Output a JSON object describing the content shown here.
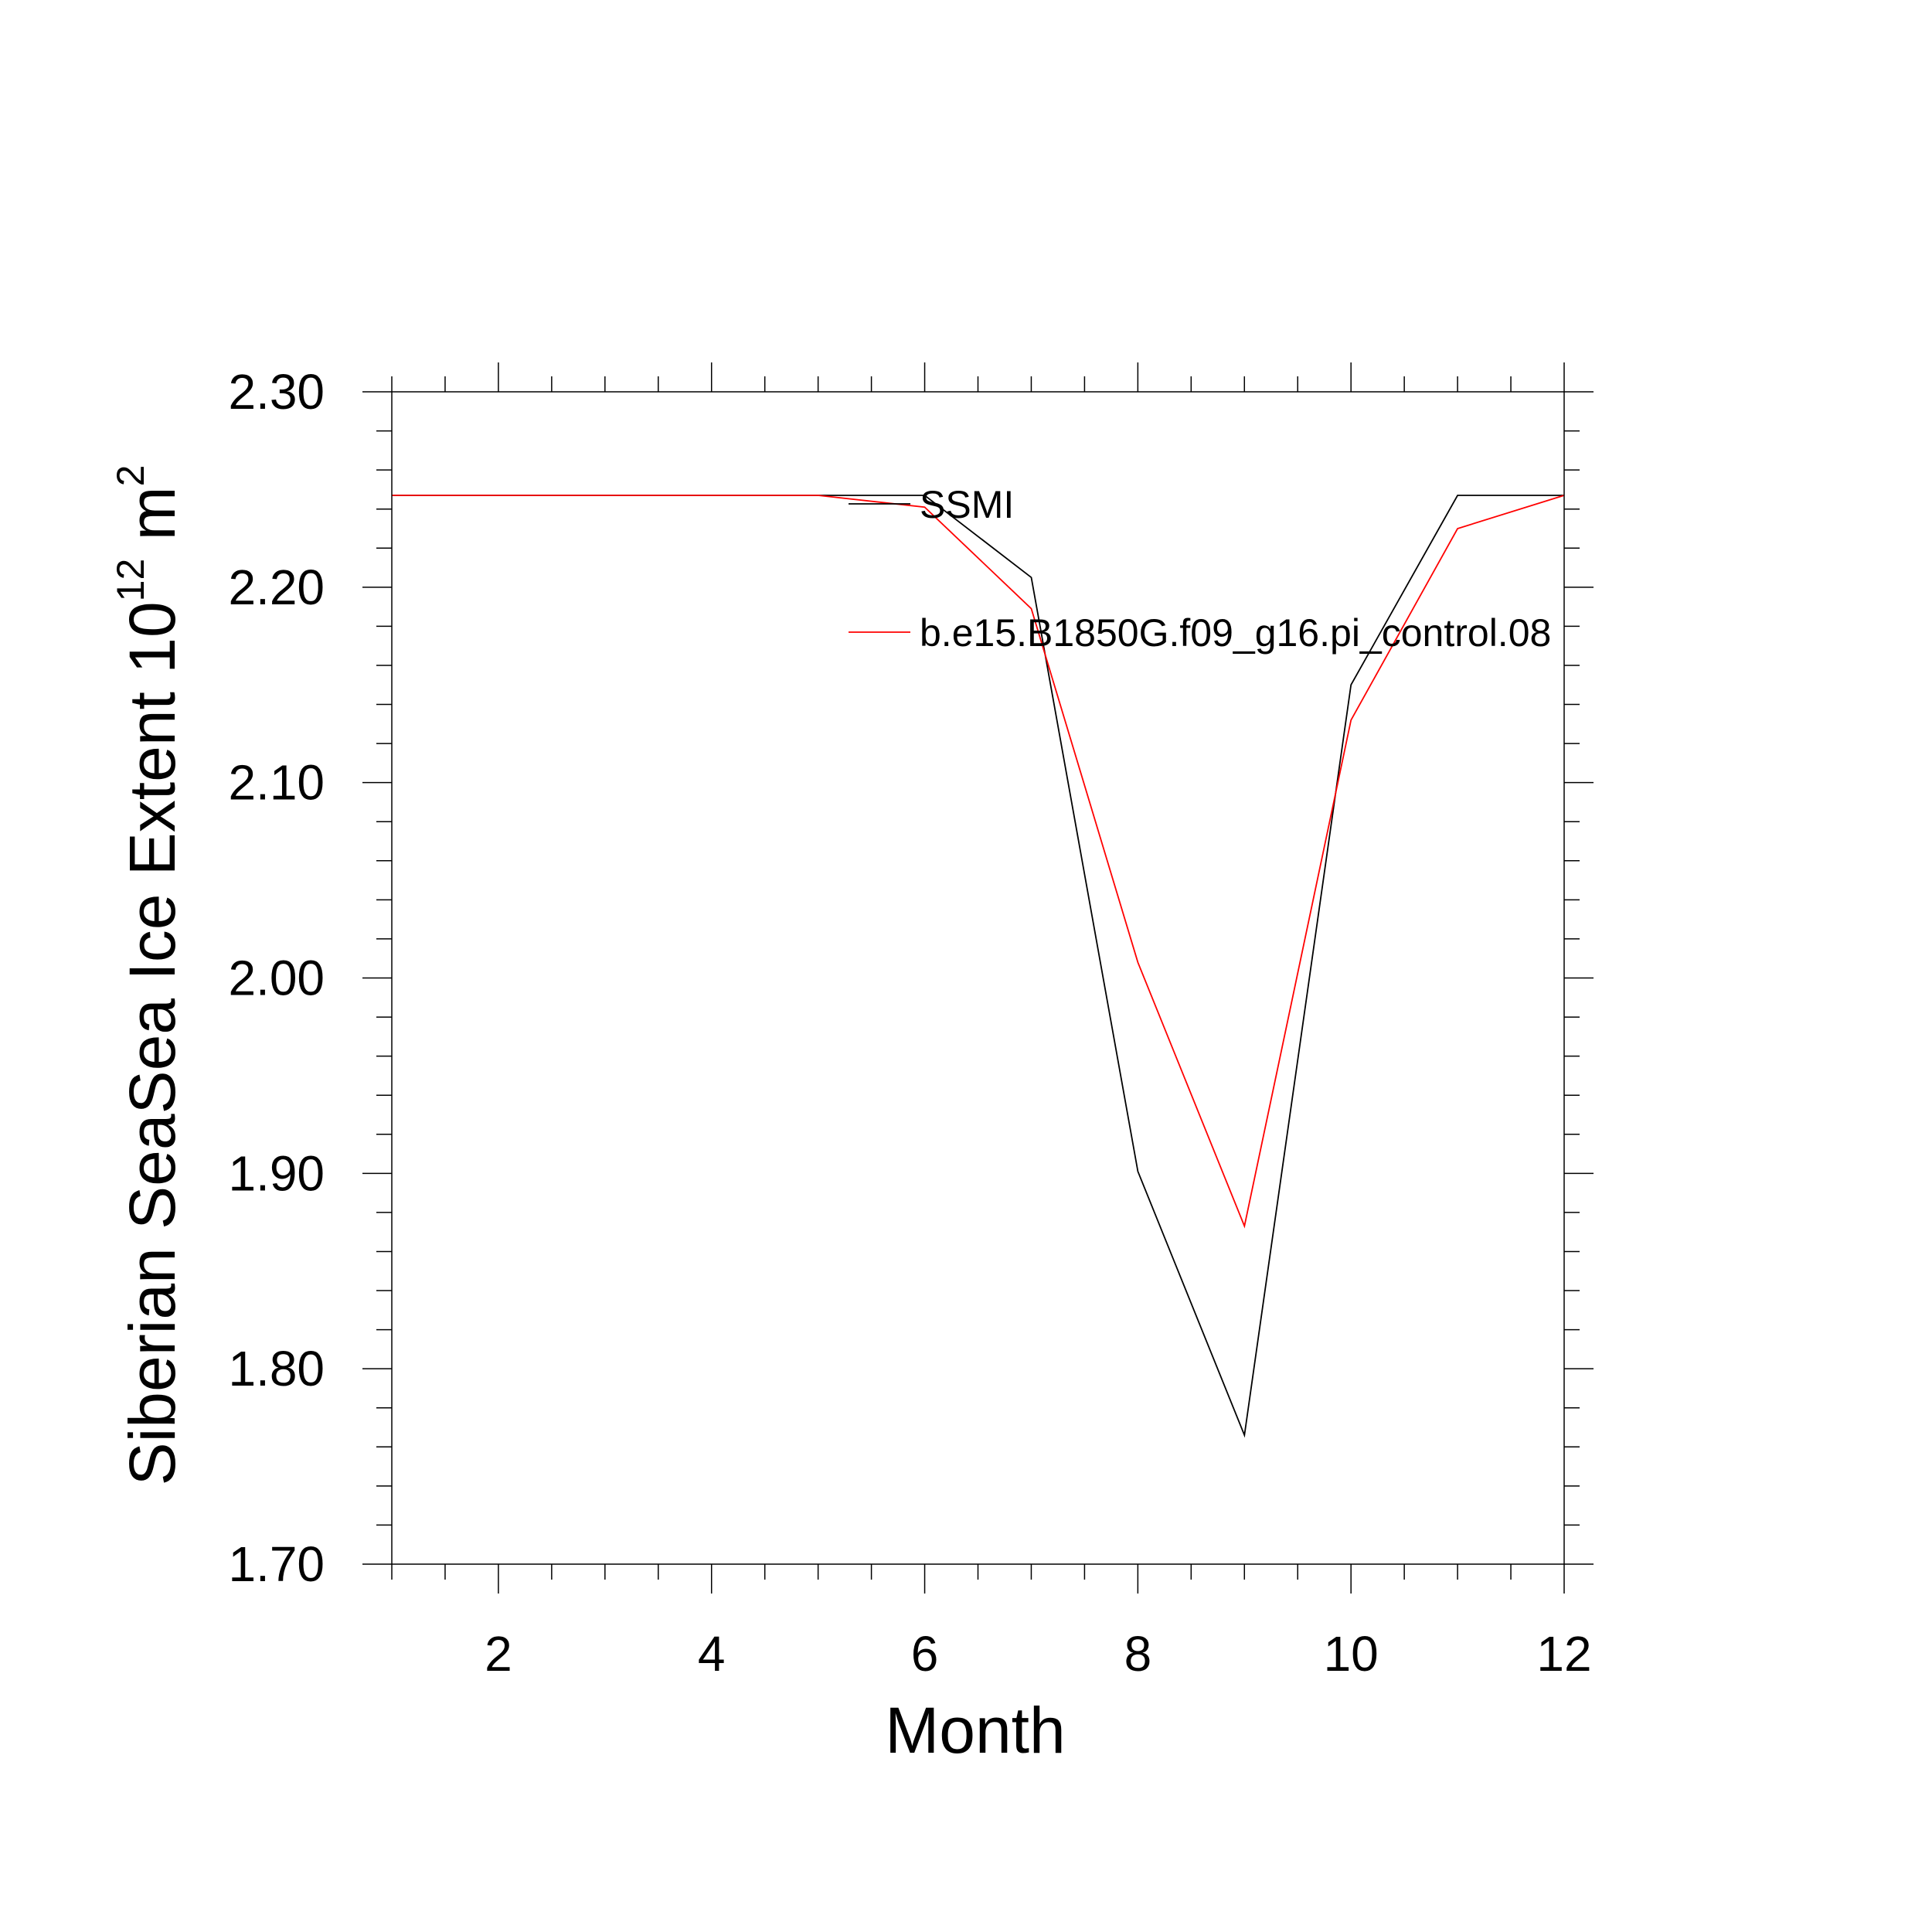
{
  "chart_data": {
    "type": "line",
    "xlabel": "Month",
    "ylabel": {
      "main": "Siberian SeaSea Ice Extent 10",
      "exp1": "12",
      "mid": " m",
      "exp2": "2"
    },
    "xlim": [
      1,
      12
    ],
    "ylim": [
      1.7,
      2.3
    ],
    "x_ticks": [
      2,
      4,
      6,
      8,
      10,
      12
    ],
    "x_tick_labels": [
      "2",
      "4",
      "6",
      "8",
      "10",
      "12"
    ],
    "y_ticks": [
      1.7,
      1.8,
      1.9,
      2.0,
      2.1,
      2.2,
      2.3
    ],
    "y_tick_labels": [
      "1.70",
      "1.80",
      "1.90",
      "2.00",
      "2.10",
      "2.20",
      "2.30"
    ],
    "x_minor_step": 0.5,
    "y_minor_step": 0.02,
    "grid": false,
    "legend_placement": "top-right (inside plot)",
    "x": [
      1,
      2,
      3,
      4,
      5,
      6,
      7,
      8,
      9,
      10,
      11,
      12
    ],
    "series": [
      {
        "name": "SSMI",
        "color": "#000000",
        "values": [
          2.247,
          2.247,
          2.247,
          2.247,
          2.247,
          2.247,
          2.205,
          1.901,
          1.766,
          2.15,
          2.247,
          2.247
        ]
      },
      {
        "name": "b.e15.B1850G.f09_g16.pi_control.08",
        "color": "#ff0000",
        "values": [
          2.247,
          2.247,
          2.247,
          2.247,
          2.247,
          2.241,
          2.189,
          2.008,
          1.873,
          2.132,
          2.23,
          2.247
        ]
      }
    ]
  }
}
